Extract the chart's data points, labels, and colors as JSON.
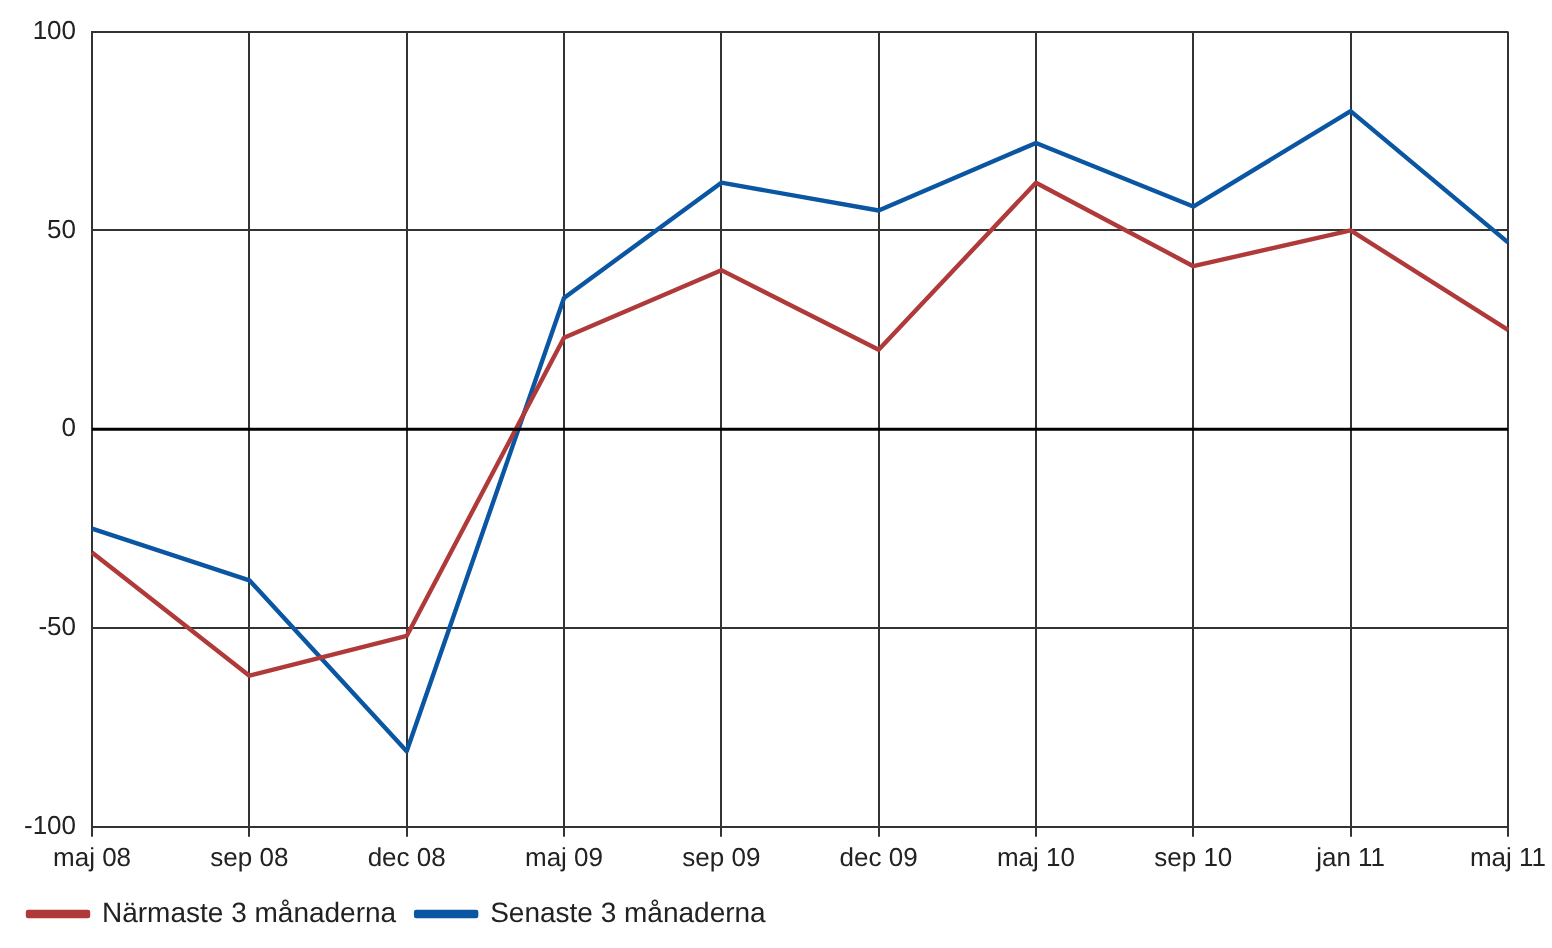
{
  "chart_data": {
    "type": "line",
    "categories": [
      "maj 08",
      "sep 08",
      "dec 08",
      "maj 09",
      "sep 09",
      "dec 09",
      "maj 10",
      "sep 10",
      "jan 11",
      "maj 11"
    ],
    "series": [
      {
        "name": "Närmaste 3 månaderna",
        "color": "#b03a3a",
        "values": [
          -31,
          -62,
          -52,
          23,
          40,
          20,
          62,
          41,
          50,
          25
        ]
      },
      {
        "name": "Senaste 3 månaderna",
        "color": "#0b56a3",
        "values": [
          -25,
          -38,
          -81,
          33,
          62,
          55,
          72,
          56,
          80,
          47
        ]
      }
    ],
    "ylim": [
      -100,
      100
    ],
    "yticks": [
      -100,
      -50,
      0,
      50,
      100
    ],
    "grid": true,
    "legend": "bottom",
    "marker": "none",
    "line_style": "solid",
    "ref_lines": [
      {
        "axis": "y",
        "value": 0,
        "color": "#000000"
      }
    ]
  }
}
